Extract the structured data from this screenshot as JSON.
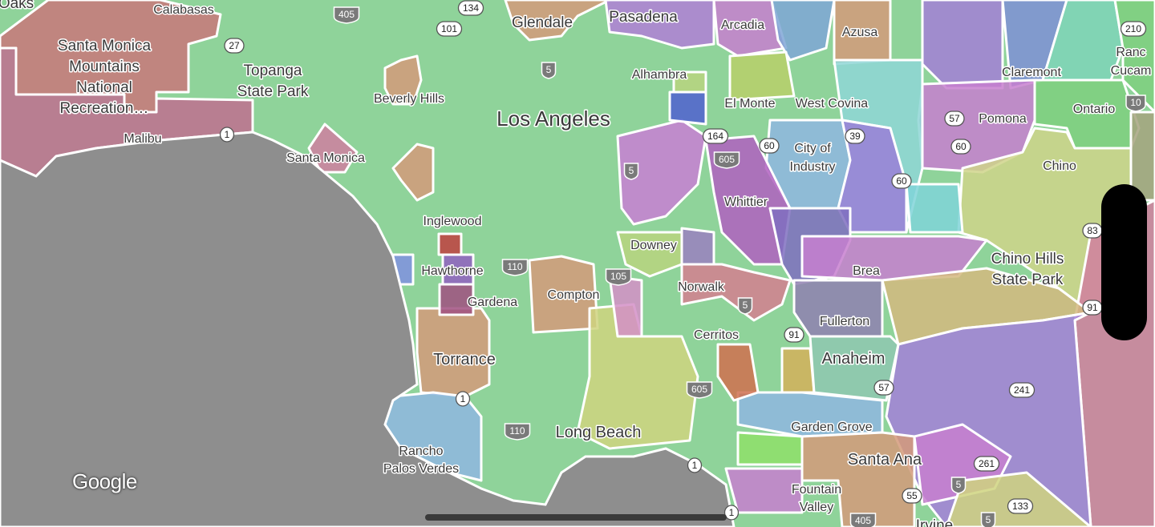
{
  "map": {
    "provider_logo": "Google",
    "colors": {
      "ocean": "#8e8e8e",
      "land": "#8fd39a",
      "boundary": "#ffffff"
    },
    "places": [
      {
        "name": [
          "Oaks"
        ]
      },
      {
        "name": [
          "Calabasas"
        ]
      },
      {
        "name": [
          "Santa Monica",
          "Mountains",
          "National",
          "Recreation…"
        ]
      },
      {
        "name": [
          "Topanga",
          "State Park"
        ]
      },
      {
        "name": [
          "Malibu"
        ]
      },
      {
        "name": [
          "Beverly Hills"
        ]
      },
      {
        "name": [
          "Los Angeles"
        ]
      },
      {
        "name": [
          "Glendale"
        ]
      },
      {
        "name": [
          "Pasadena"
        ]
      },
      {
        "name": [
          "Arcadia"
        ]
      },
      {
        "name": [
          "Azusa"
        ]
      },
      {
        "name": [
          "Claremont"
        ]
      },
      {
        "name": [
          "Ranc",
          "Cucam"
        ]
      },
      {
        "name": [
          "Alhambra"
        ]
      },
      {
        "name": [
          "El Monte"
        ]
      },
      {
        "name": [
          "West Covina"
        ]
      },
      {
        "name": [
          "Pomona"
        ]
      },
      {
        "name": [
          "Ontario"
        ]
      },
      {
        "name": [
          "Santa Monica"
        ]
      },
      {
        "name": [
          "City of",
          "Industry"
        ]
      },
      {
        "name": [
          "Chino"
        ]
      },
      {
        "name": [
          "Whittier"
        ]
      },
      {
        "name": [
          "Inglewood"
        ]
      },
      {
        "name": [
          "Downey"
        ]
      },
      {
        "name": [
          "Chino Hills",
          "State Park"
        ]
      },
      {
        "name": [
          "Hawthorne"
        ]
      },
      {
        "name": [
          "Brea"
        ]
      },
      {
        "name": [
          "Norwalk"
        ]
      },
      {
        "name": [
          "Compton"
        ]
      },
      {
        "name": [
          "Gardena"
        ]
      },
      {
        "name": [
          "Fullerton"
        ]
      },
      {
        "name": [
          "Cerritos"
        ]
      },
      {
        "name": [
          "Torrance"
        ]
      },
      {
        "name": [
          "Anaheim"
        ]
      },
      {
        "name": [
          "Garden Grove"
        ]
      },
      {
        "name": [
          "Long Beach"
        ]
      },
      {
        "name": [
          "Rancho",
          "Palos Verdes"
        ]
      },
      {
        "name": [
          "Santa Ana"
        ]
      },
      {
        "name": [
          "Fountain",
          "Valley"
        ]
      },
      {
        "name": [
          "Irvine"
        ]
      }
    ],
    "shields": [
      {
        "label": "405",
        "type": "interstate"
      },
      {
        "label": "134",
        "type": "us"
      },
      {
        "label": "101",
        "type": "us"
      },
      {
        "label": "27",
        "type": "state"
      },
      {
        "label": "5",
        "type": "interstate"
      },
      {
        "label": "1",
        "type": "state"
      },
      {
        "label": "164",
        "type": "state"
      },
      {
        "label": "605",
        "type": "interstate"
      },
      {
        "label": "60",
        "type": "state"
      },
      {
        "label": "39",
        "type": "state"
      },
      {
        "label": "60",
        "type": "state"
      },
      {
        "label": "57",
        "type": "state"
      },
      {
        "label": "10",
        "type": "interstate"
      },
      {
        "label": "210",
        "type": "state"
      },
      {
        "label": "60",
        "type": "state"
      },
      {
        "label": "83",
        "type": "state"
      },
      {
        "label": "5",
        "type": "interstate"
      },
      {
        "label": "110",
        "type": "interstate"
      },
      {
        "label": "105",
        "type": "interstate"
      },
      {
        "label": "5",
        "type": "interstate"
      },
      {
        "label": "91",
        "type": "state"
      },
      {
        "label": "91",
        "type": "state"
      },
      {
        "label": "57",
        "type": "state"
      },
      {
        "label": "241",
        "type": "state"
      },
      {
        "label": "605",
        "type": "interstate"
      },
      {
        "label": "1",
        "type": "state"
      },
      {
        "label": "110",
        "type": "interstate"
      },
      {
        "label": "1",
        "type": "state"
      },
      {
        "label": "261",
        "type": "state"
      },
      {
        "label": "55",
        "type": "state"
      },
      {
        "label": "5",
        "type": "interstate"
      },
      {
        "label": "133",
        "type": "state"
      },
      {
        "label": "5",
        "type": "interstate"
      },
      {
        "label": "405",
        "type": "interstate"
      },
      {
        "label": "1",
        "type": "state"
      }
    ]
  }
}
